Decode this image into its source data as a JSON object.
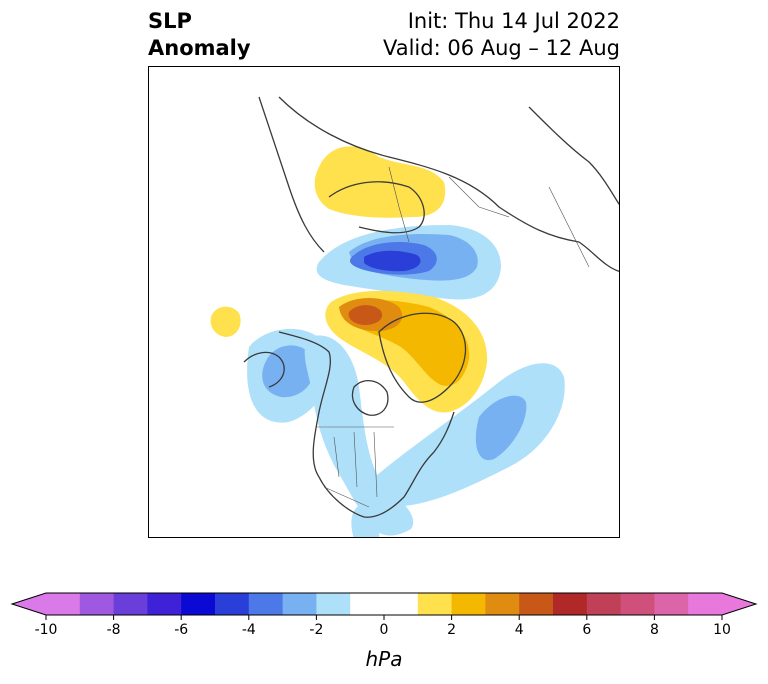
{
  "title": {
    "left_line1": "SLP",
    "left_line2": "Anomaly",
    "right_line1": "Init: Thu 14 Jul 2022",
    "right_line2": "Valid: 06 Aug – 12 Aug"
  },
  "colorbar": {
    "unit": "hPa",
    "tick_labels": [
      "-10",
      "-8",
      "-6",
      "-4",
      "-2",
      "0",
      "2",
      "4",
      "6",
      "8",
      "10"
    ],
    "min": -10,
    "max": 10,
    "step": 1,
    "extend": "both",
    "colors": [
      "#d97ae8",
      "#9e59e0",
      "#6a3ed8",
      "#3f22d8",
      "#0a0ad4",
      "#2a3ed8",
      "#4d78e8",
      "#78b1f2",
      "#aee0fa",
      "#ffffff",
      "#ffe14d",
      "#f5b800",
      "#e08c10",
      "#c85818",
      "#b02828",
      "#c04058",
      "#d0507c",
      "#dc64a8",
      "#e878dc"
    ]
  },
  "map": {
    "projection": "polar-stereographic",
    "anomalies": [
      {
        "name": "positive-anomaly-scandinavia",
        "sign": "positive",
        "peak_hpa": 2
      },
      {
        "name": "negative-anomaly-barents-kara",
        "sign": "negative",
        "peak_hpa": -6
      },
      {
        "name": "positive-anomaly-greenland",
        "sign": "positive",
        "peak_hpa": 6
      },
      {
        "name": "positive-anomaly-east-siberia",
        "sign": "positive",
        "peak_hpa": 2
      },
      {
        "name": "negative-anomaly-alaska",
        "sign": "negative",
        "peak_hpa": -4
      },
      {
        "name": "negative-anomaly-north-america",
        "sign": "negative",
        "peak_hpa": -2
      },
      {
        "name": "negative-anomaly-north-atlantic",
        "sign": "negative",
        "peak_hpa": -4
      }
    ]
  }
}
